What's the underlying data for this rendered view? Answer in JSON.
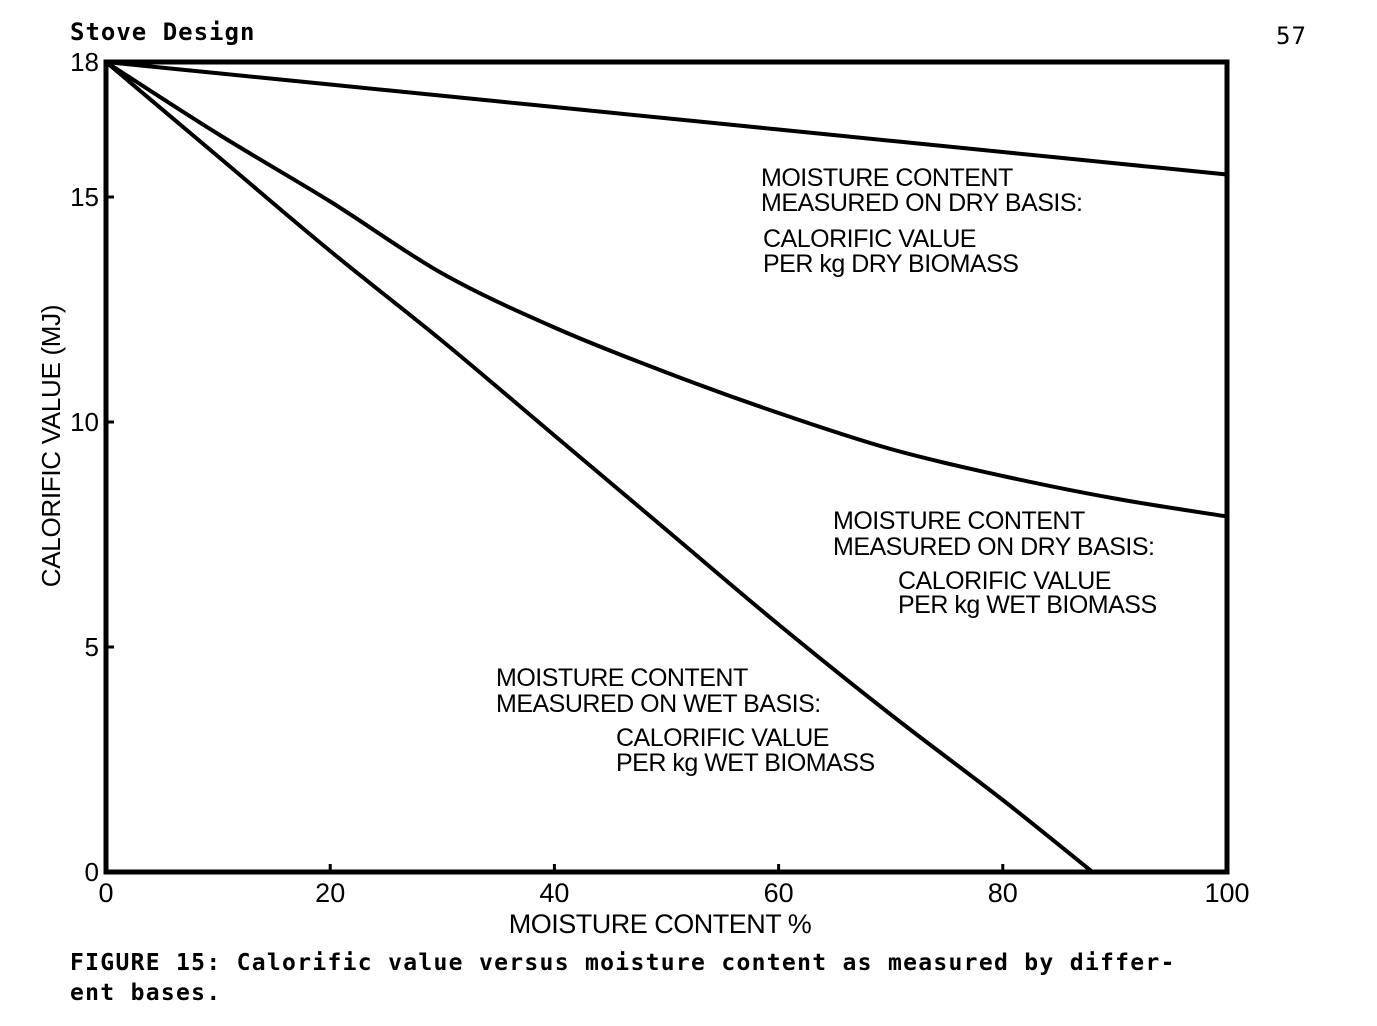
{
  "header": {
    "section_title": "Stove Design",
    "page_number": "57"
  },
  "figure": {
    "caption_line1": "FIGURE 15: Calorific value versus moisture content as measured by differ-",
    "caption_line2": "ent bases."
  },
  "chart_data": {
    "type": "line",
    "title": "",
    "xlabel": "MOISTURE CONTENT %",
    "ylabel": "CALORIFIC VALUE (MJ)",
    "xlim": [
      0,
      100
    ],
    "ylim": [
      0,
      18
    ],
    "x_ticks": [
      0,
      20,
      40,
      60,
      80,
      100
    ],
    "x_tick_labels": [
      "0",
      "20",
      "40",
      "60",
      "80",
      "100"
    ],
    "y_ticks": [
      0,
      5,
      10,
      15,
      18
    ],
    "y_tick_labels": [
      "0",
      "5",
      "10",
      "15",
      "18"
    ],
    "grid": false,
    "series": [
      {
        "x": [
          0,
          10,
          20,
          30,
          40,
          50,
          60,
          70,
          80,
          90,
          100
        ],
        "y": [
          18,
          17.75,
          17.5,
          17.25,
          17.0,
          16.75,
          16.5,
          16.25,
          16.0,
          15.75,
          15.5
        ]
      },
      {
        "x": [
          0,
          10,
          20,
          30,
          40,
          50,
          60,
          70,
          80,
          90,
          100
        ],
        "y": [
          18,
          16.4,
          14.9,
          13.3,
          12.1,
          11.1,
          10.2,
          9.4,
          8.8,
          8.3,
          7.9
        ]
      },
      {
        "x": [
          0,
          10,
          20,
          30,
          40,
          50,
          60,
          70,
          80,
          88
        ],
        "y": [
          18,
          15.9,
          13.8,
          11.8,
          9.7,
          7.6,
          5.5,
          3.5,
          1.6,
          0
        ]
      }
    ],
    "annotations": [
      {
        "line1": "MOISTURE CONTENT",
        "line2": "MEASURED ON DRY BASIS:",
        "line3": "CALORIFIC VALUE",
        "line4": "PER kg DRY BIOMASS"
      },
      {
        "line1": "MOISTURE CONTENT",
        "line2": "MEASURED ON DRY BASIS:",
        "line3": "CALORIFIC VALUE",
        "line4": "PER kg WET BIOMASS"
      },
      {
        "line1": "MOISTURE CONTENT",
        "line2": "MEASURED ON WET BASIS:",
        "line3": "CALORIFIC VALUE",
        "line4": "PER kg WET BIOMASS"
      }
    ]
  }
}
